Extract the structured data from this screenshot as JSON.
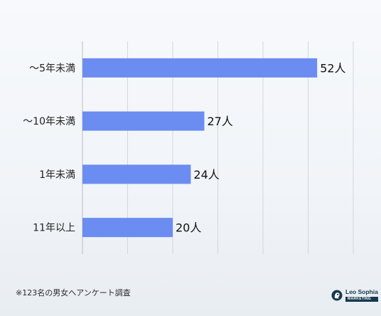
{
  "chart_data": {
    "type": "bar",
    "orientation": "horizontal",
    "categories": [
      "～5年未満",
      "～10年未満",
      "1年未満",
      "11年以上"
    ],
    "values": [
      52,
      27,
      24,
      20
    ],
    "value_labels": [
      "52人",
      "27人",
      "24人",
      "20人"
    ],
    "xlim": [
      0,
      60
    ],
    "grid": true,
    "bar_color": "#6b8cf0"
  },
  "footnote": "※123名の男女へアンケート調査",
  "brand": {
    "name": "Leo Sophia",
    "tagline": "MARKETING",
    "color": "#15394f"
  }
}
